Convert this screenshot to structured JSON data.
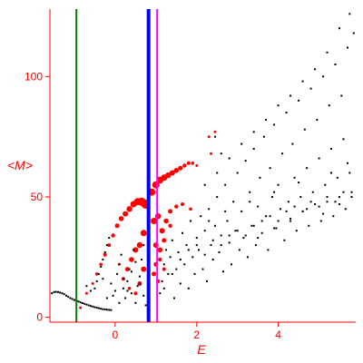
{
  "chart_data": {
    "type": "scatter",
    "xlabel": "E",
    "ylabel": "<M>",
    "xlim": [
      -1.6,
      5.9
    ],
    "ylim": [
      -2,
      128
    ],
    "x_ticks": [
      0,
      2,
      4
    ],
    "y_ticks": [
      0,
      50,
      100
    ],
    "grid": false,
    "axis_color": "#ff0000",
    "vertical_lines": [
      {
        "x": -0.95,
        "color": "#008000",
        "width": 2
      },
      {
        "x": 0.82,
        "color": "#0000ff",
        "width": 4
      },
      {
        "x": 1.03,
        "color": "#ff00ff",
        "width": 2
      }
    ],
    "series": [
      {
        "color": "#000000",
        "marker": "dot",
        "points": [
          [
            -1.55,
            10
          ],
          [
            -1.5,
            10.5
          ],
          [
            -1.45,
            10.6
          ],
          [
            -1.4,
            10.5
          ],
          [
            -1.35,
            10.3
          ],
          [
            -1.3,
            10
          ],
          [
            -1.25,
            9.6
          ],
          [
            -1.2,
            9
          ],
          [
            -1.15,
            8.5
          ],
          [
            -1.1,
            8
          ],
          [
            -1.05,
            7.6
          ],
          [
            -1.0,
            7.2
          ],
          [
            -0.95,
            6.9
          ],
          [
            -0.9,
            6.6
          ],
          [
            -0.85,
            6.2
          ],
          [
            -0.8,
            5.9
          ],
          [
            -0.75,
            5.6
          ],
          [
            -0.7,
            5.3
          ],
          [
            -0.65,
            5.0
          ],
          [
            -0.6,
            4.7
          ],
          [
            -0.55,
            4.5
          ],
          [
            -0.5,
            4.2
          ],
          [
            -0.45,
            4.0
          ],
          [
            -0.4,
            3.8
          ],
          [
            -0.35,
            3.6
          ],
          [
            -0.3,
            3.4
          ],
          [
            -0.25,
            3.3
          ],
          [
            -0.2,
            3.2
          ],
          [
            -0.15,
            3.1
          ],
          [
            -0.1,
            3.0
          ],
          [
            -0.5,
            12
          ],
          [
            -0.45,
            15
          ],
          [
            -0.4,
            18
          ],
          [
            -0.35,
            21
          ],
          [
            -0.3,
            24
          ],
          [
            -0.25,
            27
          ],
          [
            -0.2,
            30
          ],
          [
            -0.15,
            33
          ],
          [
            -0.1,
            14
          ],
          [
            -0.05,
            9
          ],
          [
            0.0,
            11
          ],
          [
            0.05,
            18
          ],
          [
            0.1,
            22
          ],
          [
            0.15,
            26
          ],
          [
            0.2,
            12
          ],
          [
            0.25,
            8
          ],
          [
            0.3,
            15
          ],
          [
            0.35,
            20
          ],
          [
            0.4,
            10
          ],
          [
            0.45,
            28
          ],
          [
            0.5,
            6
          ],
          [
            0.55,
            13
          ],
          [
            0.6,
            17
          ],
          [
            0.65,
            24
          ],
          [
            0.7,
            9
          ],
          [
            0.75,
            5
          ],
          [
            0.8,
            19
          ],
          [
            -0.7,
            13
          ],
          [
            -0.6,
            11
          ],
          [
            -0.3,
            16
          ],
          [
            -0.2,
            8
          ],
          [
            0.1,
            6
          ],
          [
            0.2,
            16
          ],
          [
            0.3,
            11
          ],
          [
            0.4,
            19
          ],
          [
            0.5,
            23
          ],
          [
            0.6,
            14
          ],
          [
            0.7,
            30
          ],
          [
            1.1,
            10
          ],
          [
            1.15,
            15
          ],
          [
            1.2,
            22
          ],
          [
            1.25,
            28
          ],
          [
            1.3,
            18
          ],
          [
            1.35,
            25
          ],
          [
            1.4,
            32
          ],
          [
            1.45,
            8
          ],
          [
            1.5,
            20
          ],
          [
            1.55,
            27
          ],
          [
            1.6,
            14
          ],
          [
            1.65,
            35
          ],
          [
            1.7,
            22
          ],
          [
            1.75,
            30
          ],
          [
            1.8,
            12
          ],
          [
            1.85,
            40
          ],
          [
            1.9,
            25
          ],
          [
            1.95,
            18
          ],
          [
            2.0,
            33
          ],
          [
            2.05,
            28
          ],
          [
            2.1,
            42
          ],
          [
            2.15,
            20
          ],
          [
            2.2,
            36
          ],
          [
            2.25,
            15
          ],
          [
            2.3,
            45
          ],
          [
            2.35,
            30
          ],
          [
            2.4,
            24
          ],
          [
            2.45,
            38
          ],
          [
            2.5,
            50
          ],
          [
            2.55,
            27
          ],
          [
            2.6,
            34
          ],
          [
            2.65,
            19
          ],
          [
            2.7,
            55
          ],
          [
            2.75,
            40
          ],
          [
            2.8,
            31
          ],
          [
            2.85,
            22
          ],
          [
            2.9,
            48
          ],
          [
            2.95,
            36
          ],
          [
            3.0,
            60
          ],
          [
            3.05,
            28
          ],
          [
            3.1,
            44
          ],
          [
            3.15,
            33
          ],
          [
            3.2,
            65
          ],
          [
            3.25,
            25
          ],
          [
            3.3,
            52
          ],
          [
            3.35,
            38
          ],
          [
            3.4,
            70
          ],
          [
            3.45,
            30
          ],
          [
            3.5,
            46
          ],
          [
            3.55,
            58
          ],
          [
            3.6,
            35
          ],
          [
            3.65,
            75
          ],
          [
            3.7,
            42
          ],
          [
            3.75,
            28
          ],
          [
            3.8,
            62
          ],
          [
            3.85,
            50
          ],
          [
            3.9,
            80
          ],
          [
            3.95,
            37
          ],
          [
            4.0,
            55
          ],
          [
            4.05,
            45
          ],
          [
            4.1,
            68
          ],
          [
            4.15,
            32
          ],
          [
            4.2,
            85
          ],
          [
            4.25,
            48
          ],
          [
            4.3,
            40
          ],
          [
            4.35,
            72
          ],
          [
            4.4,
            58
          ],
          [
            4.45,
            36
          ],
          [
            4.5,
            90
          ],
          [
            4.55,
            50
          ],
          [
            4.6,
            44
          ],
          [
            4.65,
            78
          ],
          [
            4.7,
            62
          ],
          [
            4.75,
            38
          ],
          [
            4.8,
            95
          ],
          [
            4.85,
            52
          ],
          [
            4.9,
            47
          ],
          [
            4.95,
            82
          ],
          [
            5.0,
            66
          ],
          [
            5.05,
            40
          ],
          [
            5.1,
            100
          ],
          [
            5.15,
            55
          ],
          [
            5.2,
            48
          ],
          [
            5.25,
            88
          ],
          [
            5.3,
            70
          ],
          [
            5.35,
            42
          ],
          [
            5.4,
            105
          ],
          [
            5.45,
            58
          ],
          [
            5.5,
            50
          ],
          [
            5.55,
            92
          ],
          [
            5.6,
            74
          ],
          [
            5.65,
            45
          ],
          [
            5.7,
            112
          ],
          [
            5.75,
            60
          ],
          [
            5.8,
            52
          ],
          [
            5.85,
            118
          ],
          [
            5.5,
            120
          ],
          [
            5.75,
            126
          ],
          [
            5.2,
            110
          ],
          [
            4.9,
            103
          ],
          [
            4.6,
            98
          ],
          [
            4.3,
            92
          ],
          [
            4.0,
            88
          ],
          [
            3.7,
            82
          ],
          [
            3.4,
            77
          ],
          [
            3.1,
            72
          ],
          [
            2.8,
            66
          ],
          [
            2.5,
            60
          ],
          [
            2.2,
            55
          ],
          [
            1.2,
            12
          ],
          [
            1.4,
            18
          ],
          [
            1.6,
            24
          ],
          [
            1.8,
            28
          ],
          [
            2.0,
            30
          ],
          [
            2.2,
            26
          ],
          [
            2.4,
            32
          ],
          [
            2.6,
            30
          ],
          [
            2.8,
            34
          ],
          [
            3.0,
            36
          ],
          [
            3.2,
            34
          ],
          [
            3.4,
            38
          ],
          [
            3.6,
            40
          ],
          [
            3.8,
            42
          ],
          [
            4.0,
            40
          ],
          [
            4.2,
            44
          ],
          [
            4.4,
            46
          ],
          [
            4.6,
            44
          ],
          [
            4.8,
            48
          ],
          [
            5.0,
            46
          ],
          [
            5.2,
            50
          ],
          [
            5.4,
            48
          ],
          [
            5.6,
            52
          ],
          [
            5.8,
            50
          ],
          [
            3.5,
            33
          ],
          [
            3.9,
            37
          ],
          [
            4.3,
            41
          ],
          [
            4.7,
            45
          ],
          [
            5.1,
            43
          ],
          [
            5.5,
            47
          ],
          [
            2.3,
            40
          ],
          [
            2.7,
            44
          ],
          [
            3.3,
            48
          ],
          [
            3.9,
            52
          ],
          [
            4.5,
            56
          ],
          [
            5.3,
            60
          ],
          [
            5.7,
            64
          ],
          [
            2.45,
            75
          ],
          [
            2.6,
            68
          ]
        ]
      },
      {
        "color": "#ff0000",
        "marker": "circle",
        "points": [
          [
            -0.85,
            4,
            1.5
          ],
          [
            -0.7,
            10,
            1.5
          ],
          [
            -0.55,
            14,
            1.5
          ],
          [
            -0.45,
            18,
            1.8
          ],
          [
            -0.35,
            22,
            1.8
          ],
          [
            -0.25,
            26,
            2
          ],
          [
            -0.15,
            30,
            2
          ],
          [
            -0.05,
            34,
            2.2
          ],
          [
            0.05,
            38,
            2.5
          ],
          [
            0.15,
            41,
            2.8
          ],
          [
            0.25,
            43,
            3
          ],
          [
            0.35,
            45,
            3.2
          ],
          [
            0.45,
            47,
            3.5
          ],
          [
            0.55,
            48,
            4
          ],
          [
            0.65,
            48,
            4.5
          ],
          [
            0.75,
            47,
            5
          ],
          [
            0.1,
            22,
            1.5
          ],
          [
            0.2,
            16,
            2
          ],
          [
            0.3,
            20,
            2.5
          ],
          [
            0.4,
            24,
            2.8
          ],
          [
            0.5,
            28,
            3
          ],
          [
            0.6,
            30,
            3.2
          ],
          [
            0.7,
            35,
            3.5
          ],
          [
            0.35,
            12,
            1.8
          ],
          [
            0.5,
            10,
            2
          ],
          [
            0.6,
            14,
            2.5
          ],
          [
            0.7,
            20,
            3
          ],
          [
            0.9,
            52,
            4
          ],
          [
            1.0,
            55,
            4
          ],
          [
            1.1,
            57,
            3.8
          ],
          [
            1.2,
            58,
            3.5
          ],
          [
            1.3,
            59,
            3.2
          ],
          [
            1.4,
            60,
            3
          ],
          [
            1.5,
            61,
            2.8
          ],
          [
            1.6,
            62,
            2.5
          ],
          [
            1.7,
            63,
            2.2
          ],
          [
            1.8,
            64,
            2
          ],
          [
            1.9,
            64,
            1.8
          ],
          [
            2.0,
            63,
            1.5
          ],
          [
            0.95,
            40,
            3.5
          ],
          [
            1.05,
            42,
            3.2
          ],
          [
            1.15,
            36,
            3
          ],
          [
            1.25,
            40,
            2.8
          ],
          [
            1.35,
            44,
            2.5
          ],
          [
            1.5,
            46,
            2.2
          ],
          [
            1.65,
            47,
            2
          ],
          [
            1.85,
            45,
            1.8
          ],
          [
            1.0,
            30,
            3
          ],
          [
            1.1,
            28,
            2.8
          ],
          [
            1.2,
            32,
            2.5
          ],
          [
            1.35,
            38,
            2.2
          ],
          [
            1.0,
            22,
            2.5
          ],
          [
            1.1,
            24,
            2.2
          ],
          [
            1.2,
            20,
            2
          ],
          [
            0.95,
            18,
            2.5
          ],
          [
            1.05,
            15,
            2.2
          ],
          [
            2.3,
            75,
            1.5
          ],
          [
            2.45,
            77,
            1.5
          ],
          [
            2.35,
            68,
            1.5
          ]
        ]
      }
    ]
  }
}
